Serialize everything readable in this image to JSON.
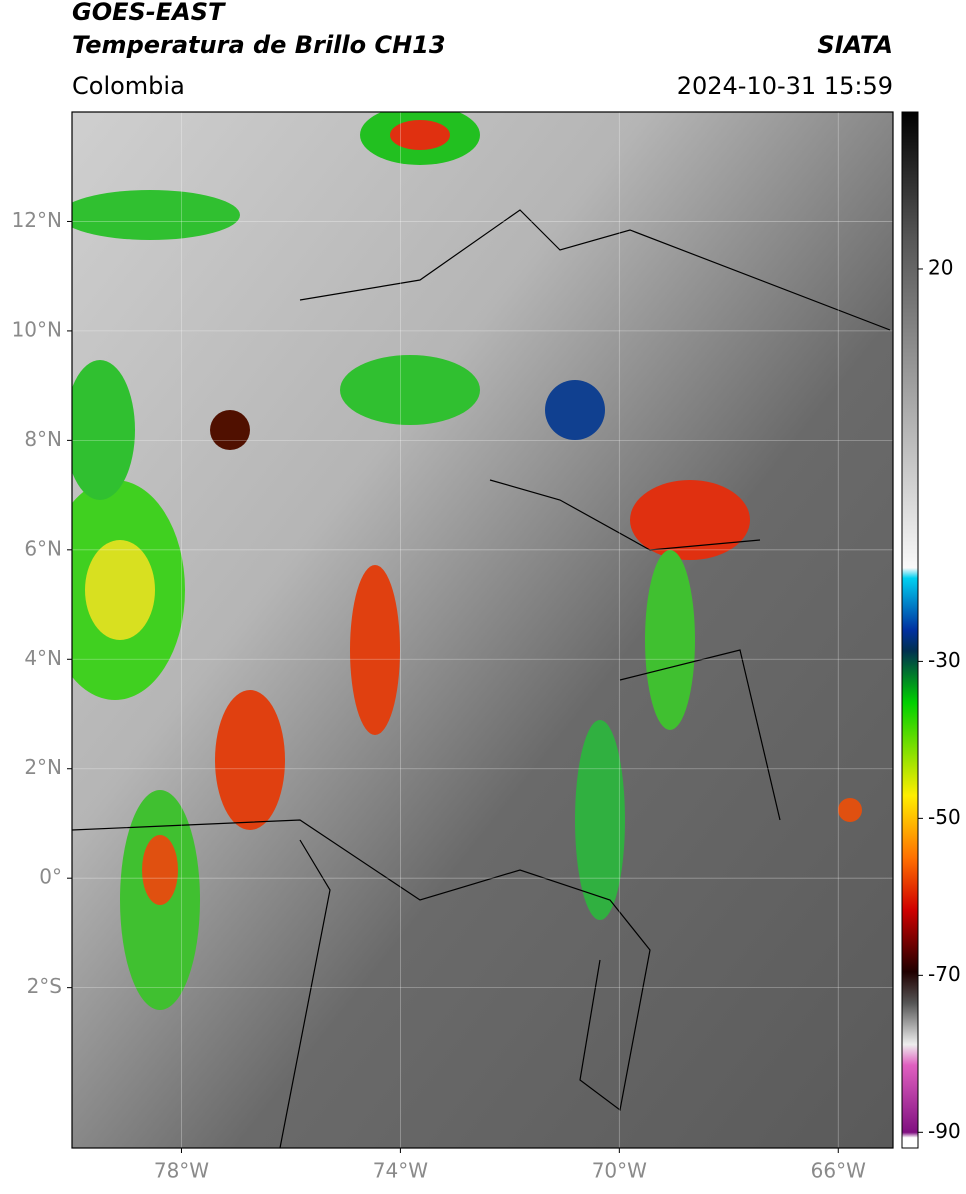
{
  "header": {
    "title": "GOES-EAST",
    "subtitle": "Temperatura de Brillo CH13",
    "source": "SIATA",
    "region": "Colombia",
    "timestamp": "2024-10-31 15:59"
  },
  "map": {
    "xlim": [
      -80,
      -65
    ],
    "ylim": [
      -4.93,
      14
    ],
    "xticks": [
      {
        "value": -78,
        "label": "78°W"
      },
      {
        "value": -74,
        "label": "74°W"
      },
      {
        "value": -70,
        "label": "70°W"
      },
      {
        "value": -66,
        "label": "66°W"
      }
    ],
    "yticks": [
      {
        "value": 12,
        "label": "12°N"
      },
      {
        "value": 10,
        "label": "10°N"
      },
      {
        "value": 8,
        "label": "8°N"
      },
      {
        "value": 6,
        "label": "6°N"
      },
      {
        "value": 4,
        "label": "4°N"
      },
      {
        "value": 2,
        "label": "2°N"
      },
      {
        "value": 0,
        "label": "0°"
      },
      {
        "value": -2,
        "label": "2°S"
      }
    ],
    "grid": true
  },
  "colorbar": {
    "lim": [
      -92,
      40
    ],
    "ticks": [
      20,
      -30,
      -50,
      -70,
      -90
    ]
  }
}
